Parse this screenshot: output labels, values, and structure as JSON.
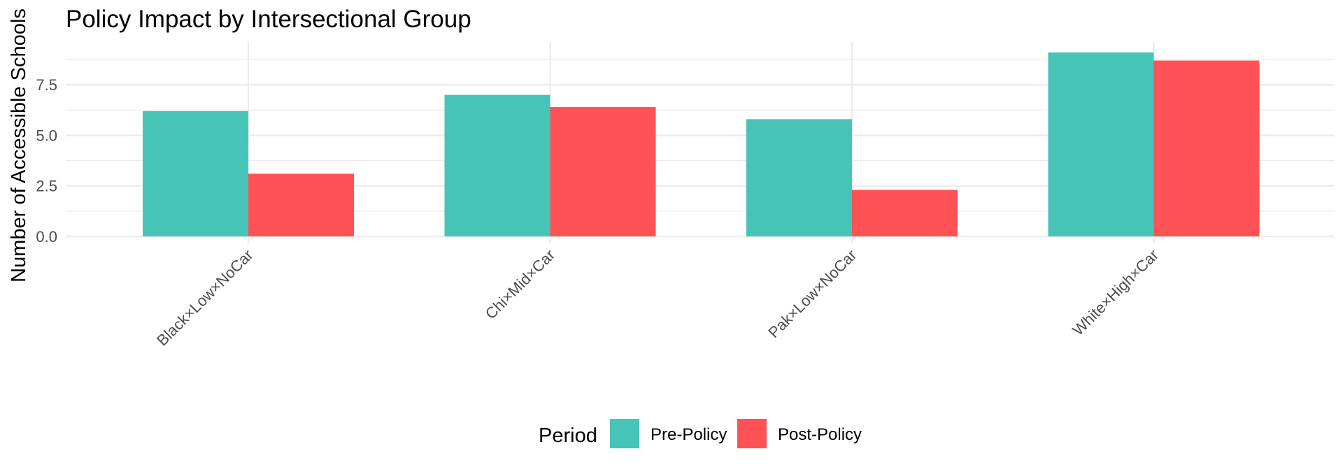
{
  "chart_data": {
    "type": "bar",
    "title": "Policy Impact by Intersectional Group",
    "xlabel": "",
    "ylabel": "Number of Accessible Schools",
    "categories": [
      "Black×Low×NoCar",
      "Chi×Mid×Car",
      "Pak×Low×NoCar",
      "White×High×Car"
    ],
    "series": [
      {
        "name": "Pre-Policy",
        "values": [
          6.2,
          7.0,
          5.8,
          9.1
        ],
        "color": "#45c4b7"
      },
      {
        "name": "Post-Policy",
        "values": [
          3.1,
          6.4,
          2.3,
          8.7
        ],
        "color": "#ff5257"
      }
    ],
    "ylim": [
      0,
      9.1
    ],
    "yticks": [
      0,
      2.5,
      5,
      7.5
    ],
    "ytick_labels": [
      "0.0",
      "2.5",
      "5.0",
      "7.5"
    ],
    "grid": true,
    "legend": {
      "title": "Period",
      "position": "bottom"
    }
  }
}
